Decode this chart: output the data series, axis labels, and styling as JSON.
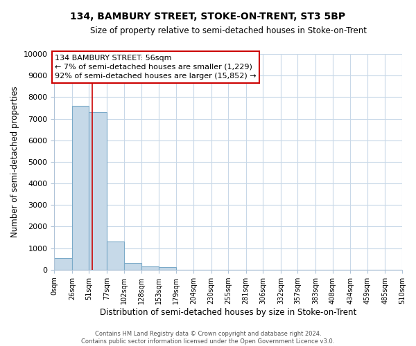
{
  "title": "134, BAMBURY STREET, STOKE-ON-TRENT, ST3 5BP",
  "subtitle": "Size of property relative to semi-detached houses in Stoke-on-Trent",
  "bar_values": [
    550,
    7600,
    7300,
    1320,
    320,
    150,
    110,
    0,
    0,
    0,
    0,
    0,
    0,
    0,
    0,
    0,
    0,
    0,
    0,
    0
  ],
  "bin_labels": [
    "0sqm",
    "26sqm",
    "51sqm",
    "77sqm",
    "102sqm",
    "128sqm",
    "153sqm",
    "179sqm",
    "204sqm",
    "230sqm",
    "255sqm",
    "281sqm",
    "306sqm",
    "332sqm",
    "357sqm",
    "383sqm",
    "408sqm",
    "434sqm",
    "459sqm",
    "485sqm",
    "510sqm"
  ],
  "bar_color": "#c6d9e8",
  "bar_edge_color": "#7baac8",
  "property_line_x": 56,
  "property_line_color": "#cc0000",
  "ylim": [
    0,
    10000
  ],
  "yticks": [
    0,
    1000,
    2000,
    3000,
    4000,
    5000,
    6000,
    7000,
    8000,
    9000,
    10000
  ],
  "xlabel": "Distribution of semi-detached houses by size in Stoke-on-Trent",
  "ylabel": "Number of semi-detached properties",
  "annotation_title": "134 BAMBURY STREET: 56sqm",
  "annotation_line1": "← 7% of semi-detached houses are smaller (1,229)",
  "annotation_line2": "92% of semi-detached houses are larger (15,852) →",
  "footer_line1": "Contains HM Land Registry data © Crown copyright and database right 2024.",
  "footer_line2": "Contains public sector information licensed under the Open Government Licence v3.0.",
  "bin_edges": [
    0,
    26,
    51,
    77,
    102,
    128,
    153,
    179,
    204,
    230,
    255,
    281,
    306,
    332,
    357,
    383,
    408,
    434,
    459,
    485,
    510
  ]
}
